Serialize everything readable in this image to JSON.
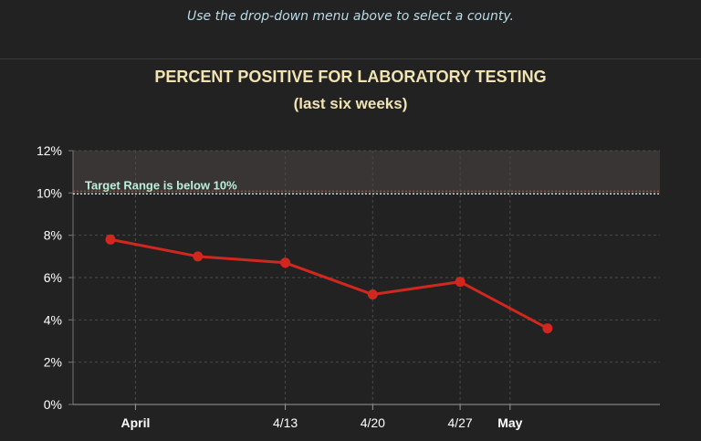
{
  "header": {
    "instruction": "Use the drop-down menu above to select a county."
  },
  "colors": {
    "background": "#222222",
    "title": "#f2e3b3",
    "instruction": "#b9dce8",
    "series": "#d0281e",
    "target_line": "#e03b3b",
    "target_dashed": "#ffffff",
    "band": "#3a3535",
    "annotation": "#b9f0da"
  },
  "chart_data": {
    "type": "line",
    "title": "PERCENT POSITIVE FOR LABORATORY TESTING",
    "subtitle": "(last six weeks)",
    "ylim": [
      0,
      12
    ],
    "yticks": [
      0,
      2,
      4,
      6,
      8,
      10,
      12
    ],
    "ytick_labels": [
      "0%",
      "2%",
      "4%",
      "6%",
      "8%",
      "10%",
      "12%"
    ],
    "x_domain": [
      -5,
      42
    ],
    "xticks": [
      {
        "x": 0,
        "label": "April",
        "major": true
      },
      {
        "x": 12,
        "label": "4/13",
        "major": false
      },
      {
        "x": 19,
        "label": "4/20",
        "major": false
      },
      {
        "x": 26,
        "label": "4/27",
        "major": false
      },
      {
        "x": 30,
        "label": "May",
        "major": true
      }
    ],
    "series": [
      {
        "name": "Percent positive",
        "x": [
          -2,
          5,
          12,
          19,
          26,
          33
        ],
        "values": [
          7.8,
          7.0,
          6.7,
          5.2,
          5.8,
          3.6
        ]
      }
    ],
    "target": {
      "value": 10,
      "band_range": [
        10,
        12
      ],
      "label": "Target Range is below 10%"
    },
    "grid": true
  }
}
